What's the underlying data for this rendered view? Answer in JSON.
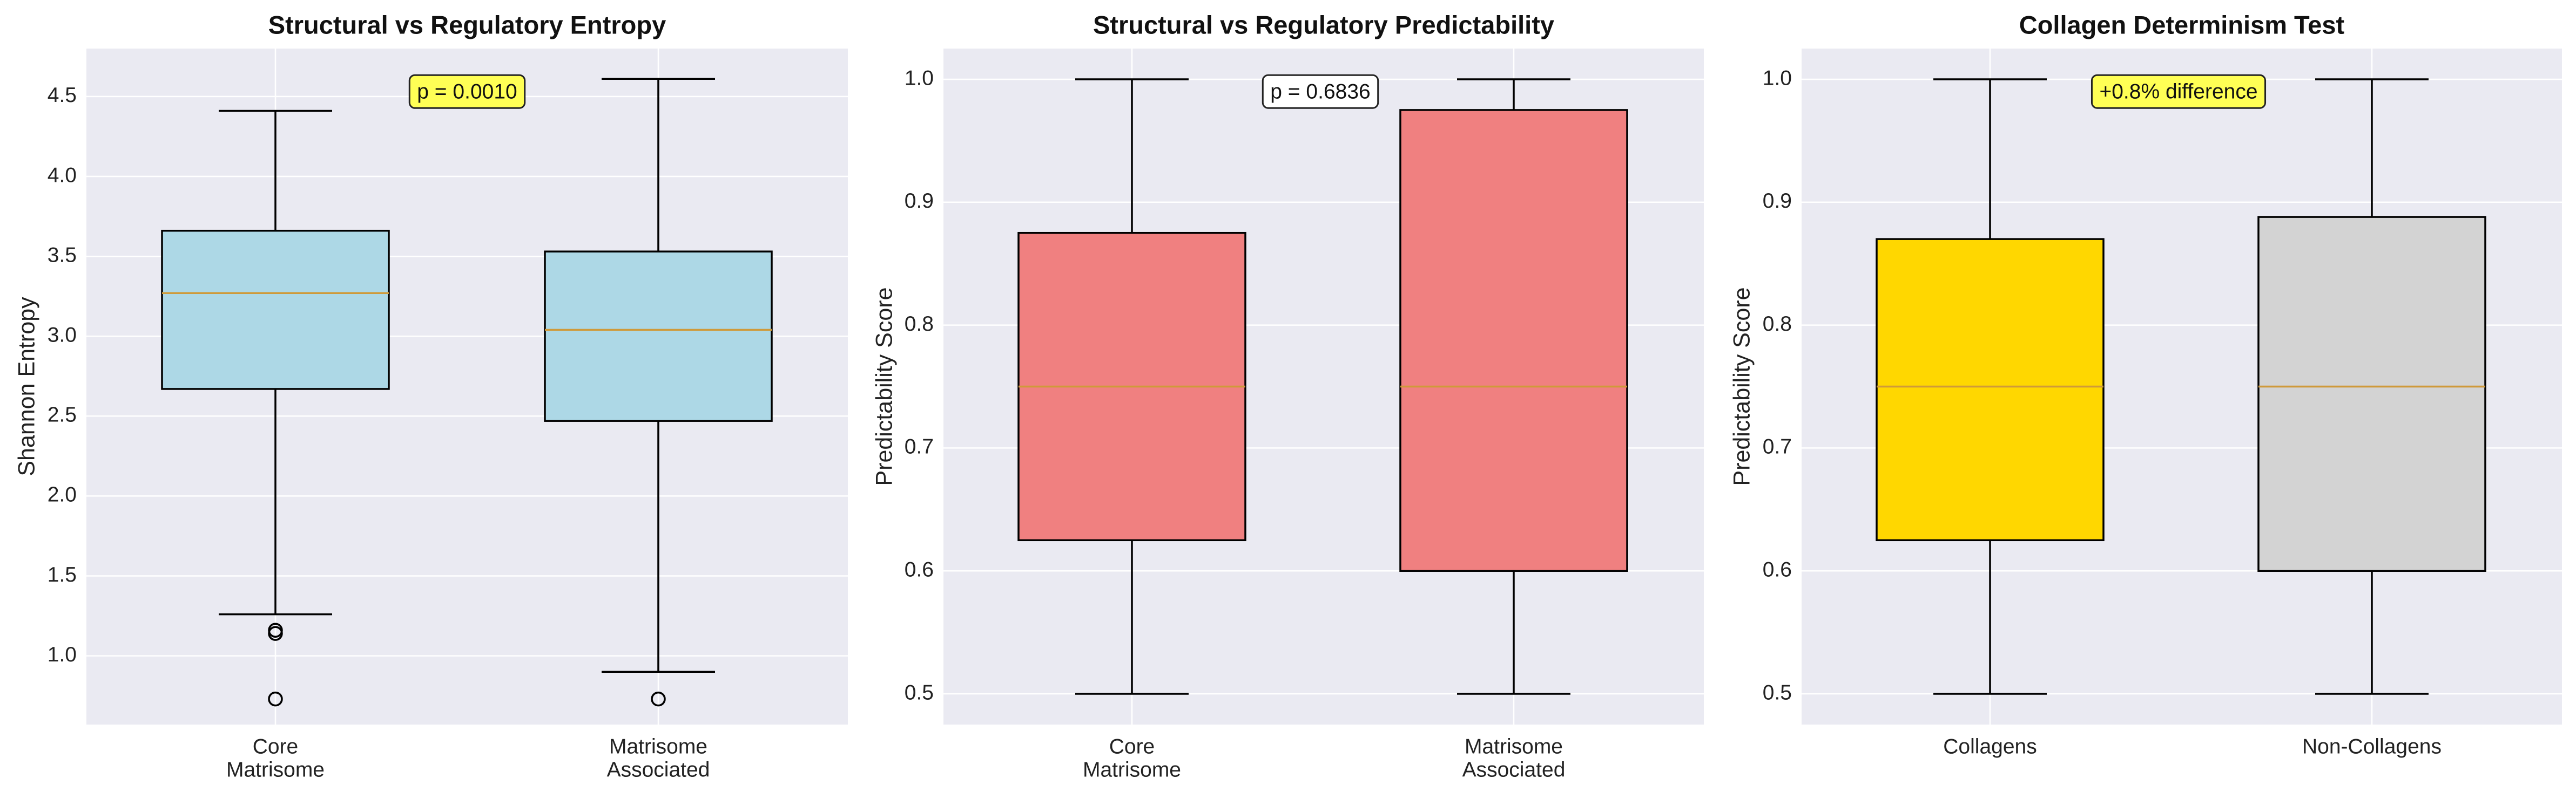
{
  "chart_data": [
    {
      "type": "box",
      "title": "Structural vs Regulatory Entropy",
      "ylabel": "Shannon Entropy",
      "xlabel": "",
      "ylim": [
        0.57,
        4.8
      ],
      "yticks": [
        "1.0",
        "1.5",
        "2.0",
        "2.5",
        "3.0",
        "3.5",
        "4.0",
        "4.5"
      ],
      "grid": true,
      "annotation": {
        "text": "p = 0.0010",
        "background": "#ffff55",
        "position": "top-center"
      },
      "boxes": [
        {
          "label_lines": [
            "Core",
            "Matrisome"
          ],
          "whisker_low": 1.26,
          "q1": 2.67,
          "median": 3.27,
          "q3": 3.66,
          "whisker_high": 4.41,
          "outliers": [
            1.14,
            1.16,
            0.73
          ],
          "color": "#add8e6"
        },
        {
          "label_lines": [
            "Matrisome",
            "Associated"
          ],
          "whisker_low": 0.9,
          "q1": 2.47,
          "median": 3.04,
          "q3": 3.53,
          "whisker_high": 4.61,
          "outliers": [
            0.73
          ],
          "color": "#add8e6"
        }
      ]
    },
    {
      "type": "box",
      "title": "Structural vs Regulatory Predictability",
      "ylabel": "Predictability Score",
      "xlabel": "",
      "ylim": [
        0.475,
        1.025
      ],
      "yticks": [
        "0.5",
        "0.6",
        "0.7",
        "0.8",
        "0.9",
        "1.0"
      ],
      "grid": true,
      "annotation": {
        "text": "p = 0.6836",
        "background": "#ffffff",
        "position": "top-center"
      },
      "boxes": [
        {
          "label_lines": [
            "Core",
            "Matrisome"
          ],
          "whisker_low": 0.5,
          "q1": 0.625,
          "median": 0.75,
          "q3": 0.875,
          "whisker_high": 1.0,
          "outliers": [],
          "color": "#f08080"
        },
        {
          "label_lines": [
            "Matrisome",
            "Associated"
          ],
          "whisker_low": 0.5,
          "q1": 0.6,
          "median": 0.75,
          "q3": 0.975,
          "whisker_high": 1.0,
          "outliers": [],
          "color": "#f08080"
        }
      ]
    },
    {
      "type": "box",
      "title": "Collagen Determinism Test",
      "ylabel": "Predictability Score",
      "xlabel": "",
      "ylim": [
        0.475,
        1.025
      ],
      "yticks": [
        "0.5",
        "0.6",
        "0.7",
        "0.8",
        "0.9",
        "1.0"
      ],
      "grid": true,
      "annotation": {
        "text": "+0.8% difference",
        "background": "#ffff55",
        "position": "top-center"
      },
      "boxes": [
        {
          "label_lines": [
            "Collagens"
          ],
          "whisker_low": 0.5,
          "q1": 0.625,
          "median": 0.75,
          "q3": 0.87,
          "whisker_high": 1.0,
          "outliers": [],
          "color": "#ffd700"
        },
        {
          "label_lines": [
            "Non-Collagens"
          ],
          "whisker_low": 0.5,
          "q1": 0.6,
          "median": 0.75,
          "q3": 0.888,
          "whisker_high": 1.0,
          "outliers": [],
          "color": "#d3d3d3"
        }
      ]
    }
  ]
}
